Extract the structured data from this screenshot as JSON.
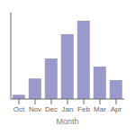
{
  "chart_data": {
    "type": "bar",
    "xlabel": "Month",
    "categories": [
      "Oct",
      "Nov",
      "Dec",
      "Jan",
      "Feb",
      "Mar",
      "Apr"
    ],
    "values": [
      8,
      38,
      75,
      120,
      145,
      60,
      35
    ],
    "color": "#9999cc",
    "ylim": [
      0,
      160
    ],
    "grid": false,
    "tick_labels": "x"
  }
}
